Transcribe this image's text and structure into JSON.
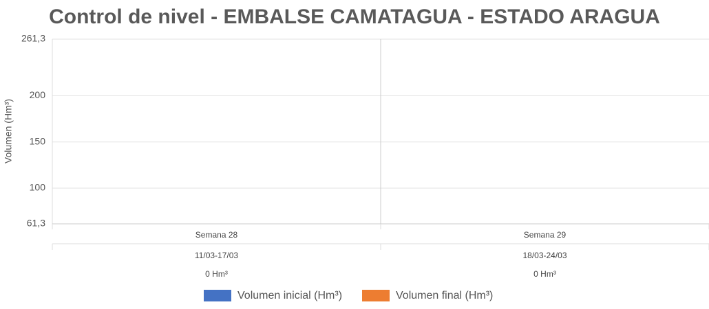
{
  "chart_data": {
    "type": "bar",
    "title": "Control de nivel - EMBALSE CAMATAGUA - ESTADO ARAGUA",
    "y_label": "Volumen (Hm³)",
    "categories": [
      "Semana 28",
      "Semana 29"
    ],
    "category_periods": [
      "11/03-17/03",
      "18/03-24/03"
    ],
    "category_notes": [
      "0 Hm³",
      "0 Hm³"
    ],
    "series": [
      {
        "name": "Volumen inicial (Hm³)",
        "color": "#4472c4",
        "values": [
          null,
          null
        ]
      },
      {
        "name": "Volumen final (Hm³)",
        "color": "#ed7d31",
        "values": [
          null,
          null
        ]
      }
    ],
    "ylim": [
      61.3,
      261.3
    ],
    "yticks": [
      {
        "value": 61.3,
        "label": "61,3"
      },
      100,
      150,
      200,
      {
        "value": 261.3,
        "label": "261,3"
      }
    ],
    "grid": true,
    "legend": "bottom"
  }
}
